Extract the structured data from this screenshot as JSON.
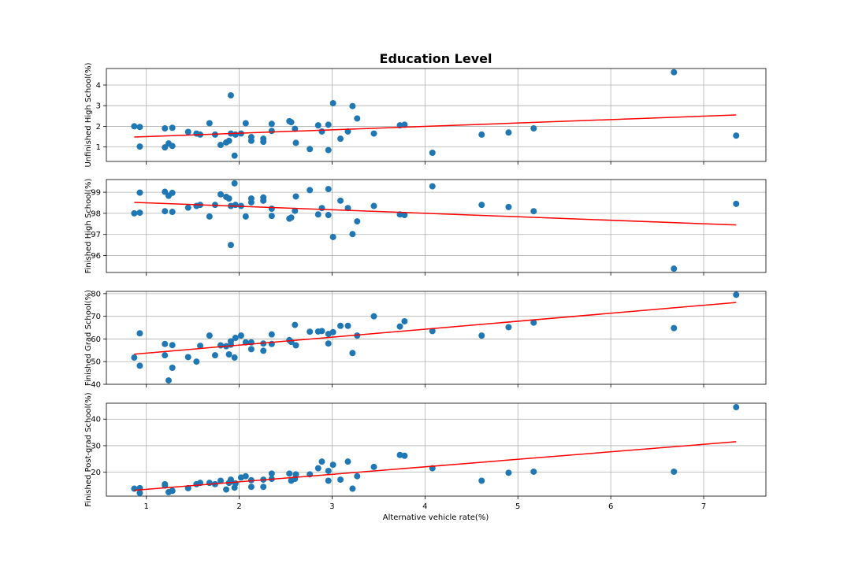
{
  "title": "Education Level",
  "xlabel": "Alternative vehicle rate(%)",
  "colors": {
    "points": "#1f77b4",
    "fit": "#ff0000",
    "grid": "#b0b0b0"
  },
  "chart_data": [
    {
      "type": "scatter",
      "title": "Education Level",
      "xlabel": "",
      "ylabel": "Unfinished High School(%)",
      "xlim": [
        0.57,
        7.67
      ],
      "ylim": [
        0.3,
        4.8
      ],
      "xticks": [
        "1",
        "2",
        "3",
        "4",
        "5",
        "6",
        "7"
      ],
      "yticks": [
        "1",
        "2",
        "3",
        "4"
      ],
      "grid": true,
      "trendline": {
        "x": [
          0.87,
          7.35
        ],
        "y": [
          1.48,
          2.55
        ]
      },
      "points": [
        {
          "x": 0.87,
          "y": 2.0
        },
        {
          "x": 0.93,
          "y": 1.97
        },
        {
          "x": 0.93,
          "y": 1.02
        },
        {
          "x": 1.2,
          "y": 1.9
        },
        {
          "x": 1.2,
          "y": 0.98
        },
        {
          "x": 1.24,
          "y": 1.17
        },
        {
          "x": 1.28,
          "y": 1.93
        },
        {
          "x": 1.28,
          "y": 1.05
        },
        {
          "x": 1.45,
          "y": 1.73
        },
        {
          "x": 1.54,
          "y": 1.65
        },
        {
          "x": 1.58,
          "y": 1.6
        },
        {
          "x": 1.68,
          "y": 2.15
        },
        {
          "x": 1.74,
          "y": 1.6
        },
        {
          "x": 1.8,
          "y": 1.1
        },
        {
          "x": 1.86,
          "y": 1.22
        },
        {
          "x": 1.89,
          "y": 1.3
        },
        {
          "x": 1.91,
          "y": 3.5
        },
        {
          "x": 1.91,
          "y": 1.65
        },
        {
          "x": 1.95,
          "y": 0.58
        },
        {
          "x": 1.96,
          "y": 1.6
        },
        {
          "x": 2.02,
          "y": 1.65
        },
        {
          "x": 2.07,
          "y": 2.15
        },
        {
          "x": 2.13,
          "y": 1.3
        },
        {
          "x": 2.13,
          "y": 1.48
        },
        {
          "x": 2.26,
          "y": 1.4
        },
        {
          "x": 2.26,
          "y": 1.25
        },
        {
          "x": 2.35,
          "y": 2.12
        },
        {
          "x": 2.35,
          "y": 1.78
        },
        {
          "x": 2.54,
          "y": 2.25
        },
        {
          "x": 2.56,
          "y": 2.2
        },
        {
          "x": 2.6,
          "y": 1.88
        },
        {
          "x": 2.61,
          "y": 1.2
        },
        {
          "x": 2.76,
          "y": 0.9
        },
        {
          "x": 2.85,
          "y": 2.05
        },
        {
          "x": 2.89,
          "y": 1.75
        },
        {
          "x": 2.96,
          "y": 2.08
        },
        {
          "x": 2.96,
          "y": 0.85
        },
        {
          "x": 3.01,
          "y": 3.12
        },
        {
          "x": 3.09,
          "y": 1.4
        },
        {
          "x": 3.17,
          "y": 1.75
        },
        {
          "x": 3.22,
          "y": 2.98
        },
        {
          "x": 3.27,
          "y": 2.38
        },
        {
          "x": 3.45,
          "y": 1.65
        },
        {
          "x": 3.73,
          "y": 2.05
        },
        {
          "x": 3.78,
          "y": 2.08
        },
        {
          "x": 4.08,
          "y": 0.72
        },
        {
          "x": 4.61,
          "y": 1.6
        },
        {
          "x": 4.9,
          "y": 1.7
        },
        {
          "x": 5.17,
          "y": 1.9
        },
        {
          "x": 6.68,
          "y": 4.62
        },
        {
          "x": 7.35,
          "y": 1.55
        }
      ]
    },
    {
      "type": "scatter",
      "xlabel": "",
      "ylabel": "Finished High School(%)",
      "xlim": [
        0.57,
        7.67
      ],
      "ylim": [
        95.2,
        99.6
      ],
      "xticks": [
        "1",
        "2",
        "3",
        "4",
        "5",
        "6",
        "7"
      ],
      "yticks": [
        "96",
        "97",
        "98",
        "99"
      ],
      "grid": true,
      "trendline": {
        "x": [
          0.87,
          7.35
        ],
        "y": [
          98.52,
          97.45
        ]
      },
      "points": [
        {
          "x": 0.87,
          "y": 98.0
        },
        {
          "x": 0.93,
          "y": 98.03
        },
        {
          "x": 0.93,
          "y": 98.98
        },
        {
          "x": 1.2,
          "y": 99.02
        },
        {
          "x": 1.2,
          "y": 98.1
        },
        {
          "x": 1.24,
          "y": 98.83
        },
        {
          "x": 1.28,
          "y": 98.97
        },
        {
          "x": 1.28,
          "y": 98.07
        },
        {
          "x": 1.45,
          "y": 98.27
        },
        {
          "x": 1.54,
          "y": 98.35
        },
        {
          "x": 1.58,
          "y": 98.4
        },
        {
          "x": 1.68,
          "y": 97.85
        },
        {
          "x": 1.74,
          "y": 98.4
        },
        {
          "x": 1.8,
          "y": 98.9
        },
        {
          "x": 1.86,
          "y": 98.78
        },
        {
          "x": 1.89,
          "y": 98.7
        },
        {
          "x": 1.91,
          "y": 96.5
        },
        {
          "x": 1.91,
          "y": 98.35
        },
        {
          "x": 1.95,
          "y": 99.42
        },
        {
          "x": 1.96,
          "y": 98.4
        },
        {
          "x": 2.02,
          "y": 98.35
        },
        {
          "x": 2.07,
          "y": 97.85
        },
        {
          "x": 2.13,
          "y": 98.7
        },
        {
          "x": 2.13,
          "y": 98.52
        },
        {
          "x": 2.26,
          "y": 98.6
        },
        {
          "x": 2.26,
          "y": 98.75
        },
        {
          "x": 2.35,
          "y": 97.88
        },
        {
          "x": 2.35,
          "y": 98.22
        },
        {
          "x": 2.54,
          "y": 97.75
        },
        {
          "x": 2.56,
          "y": 97.8
        },
        {
          "x": 2.6,
          "y": 98.12
        },
        {
          "x": 2.61,
          "y": 98.8
        },
        {
          "x": 2.76,
          "y": 99.1
        },
        {
          "x": 2.85,
          "y": 97.95
        },
        {
          "x": 2.89,
          "y": 98.25
        },
        {
          "x": 2.96,
          "y": 97.92
        },
        {
          "x": 2.96,
          "y": 99.15
        },
        {
          "x": 3.01,
          "y": 96.88
        },
        {
          "x": 3.09,
          "y": 98.6
        },
        {
          "x": 3.17,
          "y": 98.25
        },
        {
          "x": 3.22,
          "y": 97.02
        },
        {
          "x": 3.27,
          "y": 97.62
        },
        {
          "x": 3.45,
          "y": 98.35
        },
        {
          "x": 3.73,
          "y": 97.95
        },
        {
          "x": 3.78,
          "y": 97.92
        },
        {
          "x": 4.08,
          "y": 99.28
        },
        {
          "x": 4.61,
          "y": 98.4
        },
        {
          "x": 4.9,
          "y": 98.3
        },
        {
          "x": 5.17,
          "y": 98.1
        },
        {
          "x": 6.68,
          "y": 95.38
        },
        {
          "x": 7.35,
          "y": 98.45
        }
      ]
    },
    {
      "type": "scatter",
      "xlabel": "",
      "ylabel": "Finished Grad School(%)",
      "xlim": [
        0.57,
        7.67
      ],
      "ylim": [
        40,
        81
      ],
      "xticks": [
        "1",
        "2",
        "3",
        "4",
        "5",
        "6",
        "7"
      ],
      "yticks": [
        "40",
        "50",
        "60",
        "70",
        "80"
      ],
      "grid": true,
      "trendline": {
        "x": [
          0.87,
          7.35
        ],
        "y": [
          53.3,
          76.1
        ]
      },
      "points": [
        {
          "x": 0.87,
          "y": 51.8
        },
        {
          "x": 0.93,
          "y": 62.5
        },
        {
          "x": 0.93,
          "y": 48.2
        },
        {
          "x": 1.2,
          "y": 57.8
        },
        {
          "x": 1.2,
          "y": 52.8
        },
        {
          "x": 1.24,
          "y": 41.7
        },
        {
          "x": 1.28,
          "y": 57.3
        },
        {
          "x": 1.28,
          "y": 47.3
        },
        {
          "x": 1.45,
          "y": 52.0
        },
        {
          "x": 1.54,
          "y": 50.0
        },
        {
          "x": 1.58,
          "y": 57.0
        },
        {
          "x": 1.68,
          "y": 61.5
        },
        {
          "x": 1.74,
          "y": 52.8
        },
        {
          "x": 1.8,
          "y": 57.2
        },
        {
          "x": 1.86,
          "y": 56.8
        },
        {
          "x": 1.89,
          "y": 53.2
        },
        {
          "x": 1.91,
          "y": 59.0
        },
        {
          "x": 1.91,
          "y": 57.5
        },
        {
          "x": 1.95,
          "y": 51.8
        },
        {
          "x": 1.96,
          "y": 60.5
        },
        {
          "x": 2.02,
          "y": 61.5
        },
        {
          "x": 2.07,
          "y": 58.5
        },
        {
          "x": 2.13,
          "y": 55.5
        },
        {
          "x": 2.13,
          "y": 58.5
        },
        {
          "x": 2.26,
          "y": 54.8
        },
        {
          "x": 2.26,
          "y": 58.0
        },
        {
          "x": 2.35,
          "y": 57.8
        },
        {
          "x": 2.35,
          "y": 62.0
        },
        {
          "x": 2.54,
          "y": 59.5
        },
        {
          "x": 2.56,
          "y": 58.7
        },
        {
          "x": 2.6,
          "y": 66.2
        },
        {
          "x": 2.61,
          "y": 57.2
        },
        {
          "x": 2.76,
          "y": 63.2
        },
        {
          "x": 2.85,
          "y": 63.3
        },
        {
          "x": 2.89,
          "y": 63.5
        },
        {
          "x": 2.96,
          "y": 62.2
        },
        {
          "x": 2.96,
          "y": 58.0
        },
        {
          "x": 3.01,
          "y": 63.0
        },
        {
          "x": 3.09,
          "y": 65.8
        },
        {
          "x": 3.17,
          "y": 65.8
        },
        {
          "x": 3.22,
          "y": 53.8
        },
        {
          "x": 3.27,
          "y": 61.5
        },
        {
          "x": 3.45,
          "y": 70.0
        },
        {
          "x": 3.73,
          "y": 65.5
        },
        {
          "x": 3.78,
          "y": 67.8
        },
        {
          "x": 4.08,
          "y": 63.5
        },
        {
          "x": 4.61,
          "y": 61.5
        },
        {
          "x": 4.9,
          "y": 65.2
        },
        {
          "x": 5.17,
          "y": 67.2
        },
        {
          "x": 6.68,
          "y": 64.8
        },
        {
          "x": 7.35,
          "y": 79.5
        }
      ]
    },
    {
      "type": "scatter",
      "xlabel": "Alternative vehicle rate(%)",
      "ylabel": "Finished Post-grad School(%)",
      "xlim": [
        0.57,
        7.67
      ],
      "ylim": [
        11,
        46
      ],
      "xticks": [
        "1",
        "2",
        "3",
        "4",
        "5",
        "6",
        "7"
      ],
      "yticks": [
        "20",
        "30",
        "40"
      ],
      "grid": true,
      "trendline": {
        "x": [
          0.87,
          7.35
        ],
        "y": [
          13.2,
          31.5
        ]
      },
      "points": [
        {
          "x": 0.87,
          "y": 13.8
        },
        {
          "x": 0.93,
          "y": 14.0
        },
        {
          "x": 0.93,
          "y": 12.2
        },
        {
          "x": 1.2,
          "y": 15.5
        },
        {
          "x": 1.2,
          "y": 15.0
        },
        {
          "x": 1.24,
          "y": 12.5
        },
        {
          "x": 1.28,
          "y": 13.0
        },
        {
          "x": 1.28,
          "y": 13.0
        },
        {
          "x": 1.45,
          "y": 14.0
        },
        {
          "x": 1.54,
          "y": 15.5
        },
        {
          "x": 1.58,
          "y": 16.0
        },
        {
          "x": 1.68,
          "y": 16.0
        },
        {
          "x": 1.74,
          "y": 15.5
        },
        {
          "x": 1.8,
          "y": 16.8
        },
        {
          "x": 1.86,
          "y": 13.5
        },
        {
          "x": 1.89,
          "y": 16.0
        },
        {
          "x": 1.91,
          "y": 17.2
        },
        {
          "x": 1.91,
          "y": 16.5
        },
        {
          "x": 1.95,
          "y": 14.2
        },
        {
          "x": 1.96,
          "y": 15.8
        },
        {
          "x": 2.02,
          "y": 18.0
        },
        {
          "x": 2.07,
          "y": 18.5
        },
        {
          "x": 2.13,
          "y": 14.5
        },
        {
          "x": 2.13,
          "y": 17.0
        },
        {
          "x": 2.26,
          "y": 14.5
        },
        {
          "x": 2.26,
          "y": 17.2
        },
        {
          "x": 2.35,
          "y": 19.5
        },
        {
          "x": 2.35,
          "y": 17.5
        },
        {
          "x": 2.54,
          "y": 19.5
        },
        {
          "x": 2.56,
          "y": 16.8
        },
        {
          "x": 2.6,
          "y": 17.5
        },
        {
          "x": 2.61,
          "y": 19.2
        },
        {
          "x": 2.76,
          "y": 19.2
        },
        {
          "x": 2.85,
          "y": 21.5
        },
        {
          "x": 2.89,
          "y": 24.0
        },
        {
          "x": 2.96,
          "y": 20.5
        },
        {
          "x": 2.96,
          "y": 16.8
        },
        {
          "x": 3.01,
          "y": 22.8
        },
        {
          "x": 3.09,
          "y": 17.2
        },
        {
          "x": 3.17,
          "y": 24.0
        },
        {
          "x": 3.22,
          "y": 13.8
        },
        {
          "x": 3.27,
          "y": 18.5
        },
        {
          "x": 3.45,
          "y": 22.0
        },
        {
          "x": 3.73,
          "y": 26.5
        },
        {
          "x": 3.78,
          "y": 26.2
        },
        {
          "x": 4.08,
          "y": 21.5
        },
        {
          "x": 4.61,
          "y": 16.8
        },
        {
          "x": 4.9,
          "y": 19.8
        },
        {
          "x": 5.17,
          "y": 20.2
        },
        {
          "x": 6.68,
          "y": 20.2
        },
        {
          "x": 7.35,
          "y": 44.5
        }
      ]
    }
  ]
}
